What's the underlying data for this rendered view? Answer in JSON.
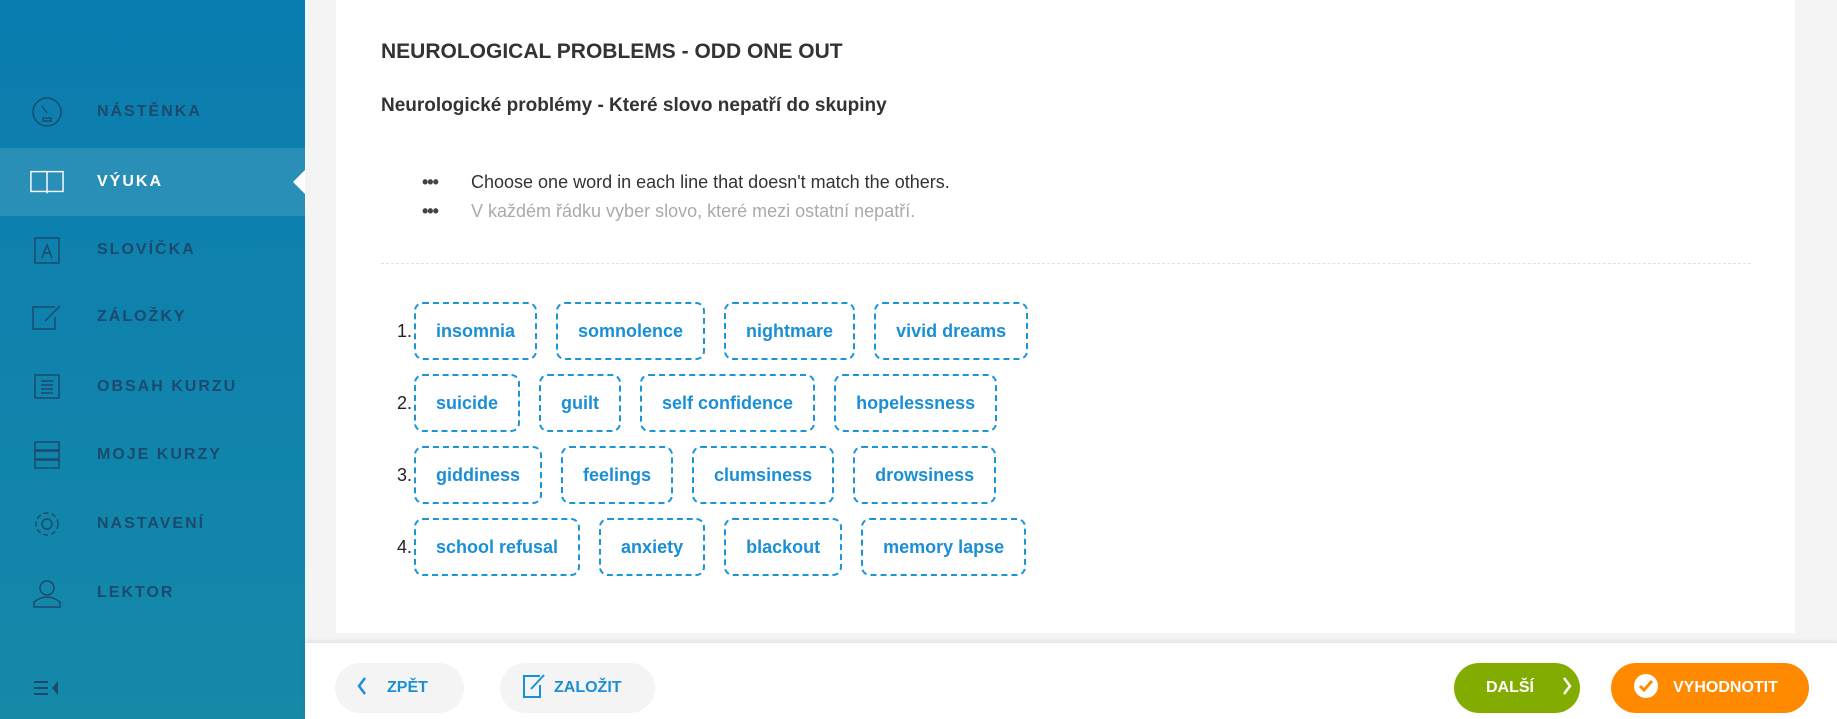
{
  "sidebar": {
    "items": [
      {
        "label": "NÁSTĚNKA",
        "icon": "dashboard-gauge-icon"
      },
      {
        "label": "VÝUKA",
        "icon": "open-book-icon",
        "active": true
      },
      {
        "label": "SLOVÍČKA",
        "icon": "vocabulary-book-icon"
      },
      {
        "label": "ZÁLOŽKY",
        "icon": "bookmark-edit-icon"
      },
      {
        "label": "OBSAH KURZU",
        "icon": "document-list-icon"
      },
      {
        "label": "MOJE KURZY",
        "icon": "courses-list-icon"
      },
      {
        "label": "NASTAVENÍ",
        "icon": "gear-icon"
      },
      {
        "label": "LEKTOR",
        "icon": "tutor-headset-icon"
      }
    ]
  },
  "main": {
    "title": "NEUROLOGICAL PROBLEMS - ODD ONE OUT",
    "subtitle": "Neurologické problémy - Které slovo nepatří do skupiny",
    "instructions": [
      {
        "bullet": "•••",
        "text": "Choose one word in each line that doesn't match the others."
      },
      {
        "bullet": "•••",
        "text": "V každém řádku vyber slovo, které mezi ostatní nepatří."
      }
    ],
    "rows": [
      {
        "num": "1.",
        "words": [
          "insomnia",
          "somnolence",
          "nightmare",
          "vivid dreams"
        ]
      },
      {
        "num": "2.",
        "words": [
          "suicide",
          "guilt",
          "self confidence",
          "hopelessness"
        ]
      },
      {
        "num": "3.",
        "words": [
          "giddiness",
          "feelings",
          "clumsiness",
          "drowsiness"
        ]
      },
      {
        "num": "4.",
        "words": [
          "school refusal",
          "anxiety",
          "blackout",
          "memory lapse"
        ]
      }
    ]
  },
  "footer": {
    "back": "ZPĚT",
    "bookmark": "ZALOŽIT",
    "next": "DALŠÍ",
    "evaluate": "VYHODNOTIT"
  },
  "colors": {
    "accent": "#1b8fd4",
    "next": "#82ad00",
    "evaluate": "#ff8a00",
    "sidebar": "#0a7db0"
  }
}
